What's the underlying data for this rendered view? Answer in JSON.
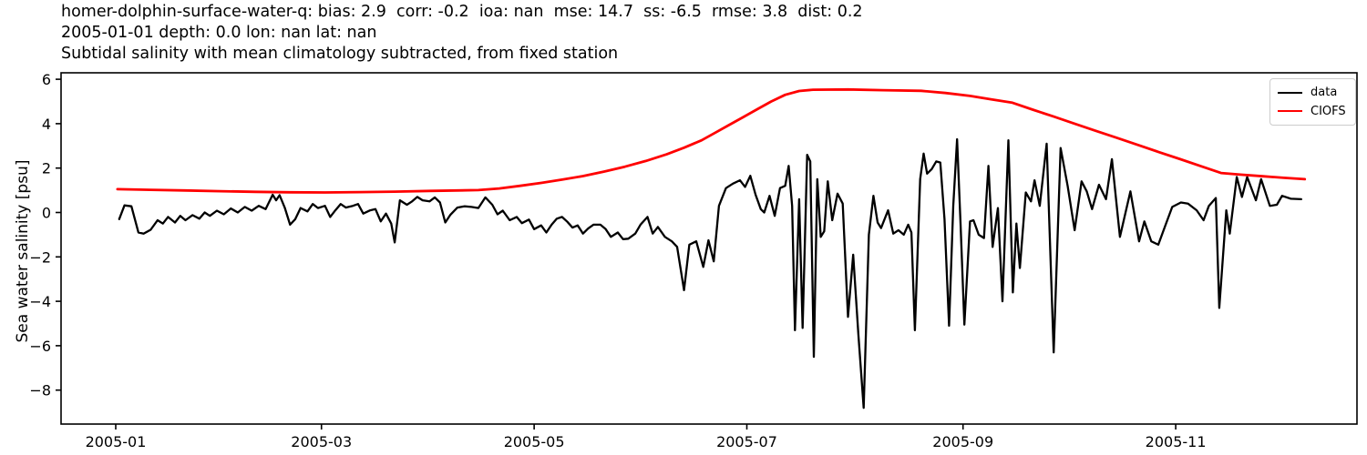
{
  "header": {
    "lines": [
      "homer-dolphin-surface-water-q: bias: 2.9  corr: -0.2  ioa: nan  mse: 14.7  ss: -6.5  rmse: 3.8  dist: 0.2",
      "2005-01-01 depth: 0.0 lon: nan lat: nan",
      "Subtidal salinity with mean climatology subtracted, from fixed station"
    ]
  },
  "chart_data": {
    "type": "line",
    "title": "Subtidal salinity with mean climatology subtracted, from fixed station",
    "xlabel": "",
    "ylabel": "Sea water salinity [psu]",
    "x_unit": "days since 2005-01-01",
    "xlim_days": [
      -15.7,
      356
    ],
    "ylim": [
      -9.5,
      6.3
    ],
    "grid": false,
    "x_ticks": [
      {
        "day": 0,
        "label": "2005-01"
      },
      {
        "day": 59,
        "label": "2005-03"
      },
      {
        "day": 120,
        "label": "2005-05"
      },
      {
        "day": 181,
        "label": "2005-07"
      },
      {
        "day": 243,
        "label": "2005-09"
      },
      {
        "day": 304,
        "label": "2005-11"
      }
    ],
    "y_ticks": [
      {
        "value": 6,
        "label": "6"
      },
      {
        "value": 4,
        "label": "4"
      },
      {
        "value": 2,
        "label": "2"
      },
      {
        "value": 0,
        "label": "0"
      },
      {
        "value": -2,
        "label": "−2"
      },
      {
        "value": -4,
        "label": "−4"
      },
      {
        "value": -6,
        "label": "−6"
      },
      {
        "value": -8,
        "label": "−8"
      }
    ],
    "legend": {
      "position": "upper right",
      "entries": [
        {
          "label": "data",
          "color": "#000000"
        },
        {
          "label": "CIOFS",
          "color": "#ff0000"
        }
      ]
    },
    "series": [
      {
        "name": "data",
        "color": "#000000",
        "points": [
          [
            1,
            -0.3
          ],
          [
            2.5,
            0.32
          ],
          [
            4.5,
            0.28
          ],
          [
            6.5,
            -0.9
          ],
          [
            8,
            -0.95
          ],
          [
            10,
            -0.78
          ],
          [
            12,
            -0.35
          ],
          [
            13.5,
            -0.5
          ],
          [
            15,
            -0.2
          ],
          [
            17,
            -0.45
          ],
          [
            18.5,
            -0.15
          ],
          [
            20,
            -0.35
          ],
          [
            22,
            -0.12
          ],
          [
            24,
            -0.28
          ],
          [
            25.5,
            0
          ],
          [
            27,
            -0.15
          ],
          [
            29,
            0.08
          ],
          [
            31,
            -0.08
          ],
          [
            33,
            0.18
          ],
          [
            35,
            0
          ],
          [
            37,
            0.25
          ],
          [
            39,
            0.08
          ],
          [
            41,
            0.3
          ],
          [
            43,
            0.15
          ],
          [
            45,
            0.8
          ],
          [
            46,
            0.55
          ],
          [
            47,
            0.78
          ],
          [
            48.5,
            0.2
          ],
          [
            50,
            -0.55
          ],
          [
            51.5,
            -0.3
          ],
          [
            53,
            0.2
          ],
          [
            55,
            0.05
          ],
          [
            56.5,
            0.38
          ],
          [
            58,
            0.2
          ],
          [
            60,
            0.3
          ],
          [
            61.5,
            -0.2
          ],
          [
            63,
            0.1
          ],
          [
            64.5,
            0.38
          ],
          [
            66,
            0.22
          ],
          [
            68,
            0.3
          ],
          [
            69.5,
            0.38
          ],
          [
            71,
            -0.05
          ],
          [
            73,
            0.1
          ],
          [
            74.5,
            0.15
          ],
          [
            76,
            -0.4
          ],
          [
            77.5,
            -0.05
          ],
          [
            79,
            -0.5
          ],
          [
            80,
            -1.35
          ],
          [
            81.5,
            0.55
          ],
          [
            83.5,
            0.35
          ],
          [
            85,
            0.5
          ],
          [
            86.5,
            0.7
          ],
          [
            88,
            0.55
          ],
          [
            90,
            0.5
          ],
          [
            91.5,
            0.68
          ],
          [
            93,
            0.45
          ],
          [
            94.5,
            -0.45
          ],
          [
            96,
            -0.1
          ],
          [
            98,
            0.22
          ],
          [
            100,
            0.28
          ],
          [
            102,
            0.25
          ],
          [
            104,
            0.2
          ],
          [
            106,
            0.68
          ],
          [
            108,
            0.35
          ],
          [
            109.5,
            -0.08
          ],
          [
            111,
            0.08
          ],
          [
            113,
            -0.35
          ],
          [
            115,
            -0.2
          ],
          [
            116.5,
            -0.48
          ],
          [
            118.5,
            -0.32
          ],
          [
            120,
            -0.75
          ],
          [
            122,
            -0.58
          ],
          [
            123.5,
            -0.9
          ],
          [
            125,
            -0.55
          ],
          [
            126.5,
            -0.28
          ],
          [
            128,
            -0.2
          ],
          [
            129.5,
            -0.42
          ],
          [
            131,
            -0.68
          ],
          [
            132.5,
            -0.58
          ],
          [
            134,
            -0.95
          ],
          [
            135.5,
            -0.72
          ],
          [
            137,
            -0.55
          ],
          [
            139,
            -0.55
          ],
          [
            140.5,
            -0.75
          ],
          [
            142,
            -1.1
          ],
          [
            144,
            -0.9
          ],
          [
            145.5,
            -1.2
          ],
          [
            147,
            -1.18
          ],
          [
            149,
            -0.95
          ],
          [
            150.5,
            -0.55
          ],
          [
            152.5,
            -0.2
          ],
          [
            154,
            -0.95
          ],
          [
            155.5,
            -0.65
          ],
          [
            157.5,
            -1.1
          ],
          [
            159.5,
            -1.3
          ],
          [
            161,
            -1.55
          ],
          [
            163,
            -3.5
          ],
          [
            164.5,
            -1.45
          ],
          [
            166.5,
            -1.3
          ],
          [
            168.5,
            -2.45
          ],
          [
            170,
            -1.25
          ],
          [
            171.5,
            -2.2
          ],
          [
            173,
            0.3
          ],
          [
            175,
            1.1
          ],
          [
            177,
            1.3
          ],
          [
            179,
            1.45
          ],
          [
            180.5,
            1.15
          ],
          [
            182,
            1.65
          ],
          [
            183.5,
            0.8
          ],
          [
            185,
            0.15
          ],
          [
            186,
            0
          ],
          [
            187.5,
            0.75
          ],
          [
            189,
            -0.15
          ],
          [
            190.5,
            1.1
          ],
          [
            192,
            1.2
          ],
          [
            193,
            2.1
          ],
          [
            194,
            0.3
          ],
          [
            194.8,
            -5.3
          ],
          [
            196,
            0.6
          ],
          [
            197,
            -5.2
          ],
          [
            198.3,
            2.6
          ],
          [
            199.2,
            2.3
          ],
          [
            200.2,
            -6.5
          ],
          [
            201.2,
            1.5
          ],
          [
            202.2,
            -1.1
          ],
          [
            203.2,
            -0.85
          ],
          [
            204.2,
            1.4
          ],
          [
            205.5,
            -0.35
          ],
          [
            207,
            0.85
          ],
          [
            208.5,
            0.4
          ],
          [
            210,
            -4.7
          ],
          [
            211.5,
            -1.9
          ],
          [
            213,
            -5.5
          ],
          [
            214.5,
            -8.8
          ],
          [
            216,
            -1
          ],
          [
            217.3,
            0.75
          ],
          [
            218.5,
            -0.45
          ],
          [
            219.5,
            -0.7
          ],
          [
            221.5,
            0.1
          ],
          [
            223,
            -0.95
          ],
          [
            224.5,
            -0.8
          ],
          [
            226,
            -1
          ],
          [
            227.3,
            -0.55
          ],
          [
            228.2,
            -0.9
          ],
          [
            229.2,
            -5.3
          ],
          [
            230.7,
            1.5
          ],
          [
            231.7,
            2.65
          ],
          [
            232.7,
            1.75
          ],
          [
            234,
            1.95
          ],
          [
            235.3,
            2.3
          ],
          [
            236.5,
            2.25
          ],
          [
            237.7,
            -0.3
          ],
          [
            239,
            -5.1
          ],
          [
            240.2,
            0.3
          ],
          [
            241.3,
            3.3
          ],
          [
            242.3,
            -0.5
          ],
          [
            243.4,
            -5.05
          ],
          [
            245,
            -0.4
          ],
          [
            246,
            -0.35
          ],
          [
            247.5,
            -1
          ],
          [
            249,
            -1.15
          ],
          [
            250.3,
            2.1
          ],
          [
            251.5,
            -1.55
          ],
          [
            253,
            0.2
          ],
          [
            254.3,
            -4
          ],
          [
            256,
            3.25
          ],
          [
            257.3,
            -3.6
          ],
          [
            258.3,
            -0.5
          ],
          [
            259.3,
            -2.5
          ],
          [
            261,
            0.9
          ],
          [
            262.5,
            0.5
          ],
          [
            263.5,
            1.45
          ],
          [
            265,
            0.3
          ],
          [
            267,
            3.1
          ],
          [
            269,
            -6.3
          ],
          [
            271,
            2.9
          ],
          [
            273,
            1.2
          ],
          [
            275,
            -0.8
          ],
          [
            277,
            1.4
          ],
          [
            278.5,
            0.95
          ],
          [
            280,
            0.15
          ],
          [
            282,
            1.25
          ],
          [
            284,
            0.6
          ],
          [
            285.7,
            2.4
          ],
          [
            288,
            -1.1
          ],
          [
            291,
            0.95
          ],
          [
            293.5,
            -1.3
          ],
          [
            295,
            -0.4
          ],
          [
            297,
            -1.3
          ],
          [
            299,
            -1.45
          ],
          [
            301,
            -0.6
          ],
          [
            303,
            0.25
          ],
          [
            305.5,
            0.45
          ],
          [
            307.5,
            0.4
          ],
          [
            310,
            0.1
          ],
          [
            312,
            -0.35
          ],
          [
            313.5,
            0.3
          ],
          [
            315.5,
            0.65
          ],
          [
            316.5,
            -4.3
          ],
          [
            318.5,
            0.1
          ],
          [
            319.5,
            -0.95
          ],
          [
            321.5,
            1.6
          ],
          [
            323,
            0.7
          ],
          [
            324.5,
            1.6
          ],
          [
            327,
            0.55
          ],
          [
            328.5,
            1.5
          ],
          [
            331,
            0.3
          ],
          [
            333,
            0.35
          ],
          [
            334.5,
            0.75
          ],
          [
            337,
            0.62
          ],
          [
            340,
            0.6
          ]
        ]
      },
      {
        "name": "CIOFS",
        "color": "#ff0000",
        "points": [
          [
            0.5,
            1.05
          ],
          [
            10,
            1.02
          ],
          [
            20,
            0.99
          ],
          [
            30,
            0.96
          ],
          [
            40,
            0.93
          ],
          [
            50,
            0.91
          ],
          [
            60,
            0.9
          ],
          [
            70,
            0.92
          ],
          [
            80,
            0.94
          ],
          [
            90,
            0.97
          ],
          [
            98,
            0.99
          ],
          [
            104,
            1.01
          ],
          [
            110,
            1.08
          ],
          [
            116,
            1.2
          ],
          [
            122,
            1.33
          ],
          [
            128,
            1.48
          ],
          [
            134,
            1.64
          ],
          [
            140,
            1.84
          ],
          [
            146,
            2.06
          ],
          [
            152,
            2.32
          ],
          [
            158,
            2.62
          ],
          [
            163,
            2.92
          ],
          [
            168,
            3.25
          ],
          [
            172,
            3.6
          ],
          [
            176,
            3.95
          ],
          [
            180,
            4.3
          ],
          [
            184,
            4.65
          ],
          [
            188,
            5.0
          ],
          [
            192,
            5.3
          ],
          [
            196,
            5.47
          ],
          [
            200,
            5.53
          ],
          [
            210,
            5.54
          ],
          [
            220,
            5.51
          ],
          [
            231,
            5.48
          ],
          [
            238,
            5.38
          ],
          [
            245,
            5.25
          ],
          [
            251,
            5.1
          ],
          [
            257,
            4.95
          ],
          [
            263,
            4.63
          ],
          [
            269,
            4.32
          ],
          [
            275,
            4.0
          ],
          [
            281,
            3.68
          ],
          [
            287,
            3.37
          ],
          [
            293,
            3.05
          ],
          [
            299,
            2.73
          ],
          [
            305,
            2.42
          ],
          [
            311,
            2.1
          ],
          [
            317,
            1.78
          ],
          [
            323,
            1.7
          ],
          [
            329,
            1.63
          ],
          [
            335,
            1.56
          ],
          [
            341,
            1.5
          ]
        ]
      }
    ]
  }
}
